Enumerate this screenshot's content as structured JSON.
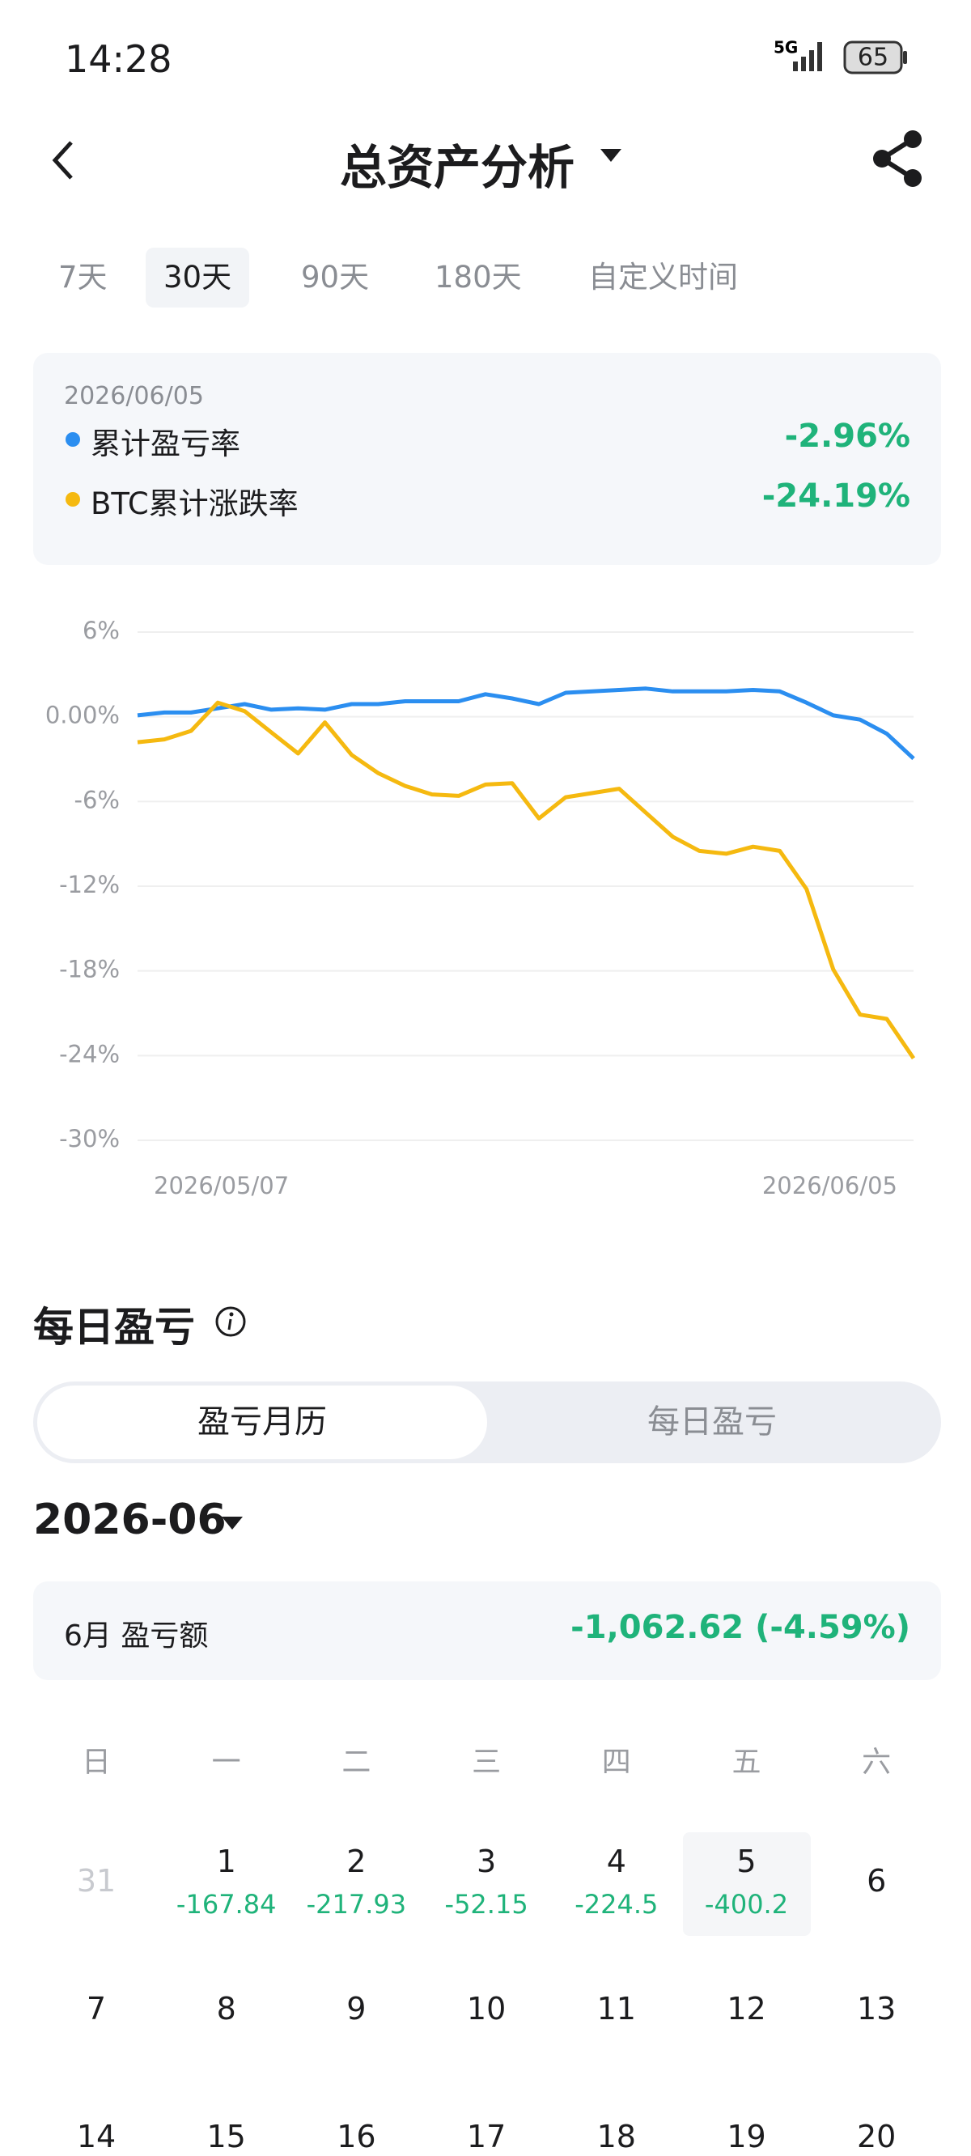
{
  "status_bar": {
    "time": "14:28",
    "network": "5G",
    "battery": "65"
  },
  "header": {
    "title": "总资产分析"
  },
  "tabs": {
    "items": [
      "7天",
      "30天",
      "90天",
      "180天",
      "自定义时间"
    ],
    "active": 1
  },
  "readout": {
    "values": [
      "-2.96%",
      "-24.19%"
    ]
  },
  "chart_data": {
    "type": "line",
    "x": [
      "2026/05/07",
      "2026/05/08",
      "2026/05/09",
      "2026/05/10",
      "2026/05/11",
      "2026/05/12",
      "2026/05/13",
      "2026/05/14",
      "2026/05/15",
      "2026/05/16",
      "2026/05/17",
      "2026/05/18",
      "2026/05/19",
      "2026/05/20",
      "2026/05/21",
      "2026/05/22",
      "2026/05/23",
      "2026/05/24",
      "2026/05/25",
      "2026/05/26",
      "2026/05/27",
      "2026/05/28",
      "2026/05/29",
      "2026/05/30",
      "2026/05/31",
      "2026/06/01",
      "2026/06/02",
      "2026/06/03",
      "2026/06/04",
      "2026/06/05"
    ],
    "series": [
      {
        "name": "累计盈亏率",
        "color": "#2b8ef0",
        "values": [
          0.1,
          0.3,
          0.3,
          0.6,
          0.9,
          0.5,
          0.6,
          0.5,
          0.9,
          0.9,
          1.1,
          1.1,
          1.1,
          1.6,
          1.3,
          0.9,
          1.7,
          1.8,
          1.9,
          2.0,
          1.8,
          1.8,
          1.8,
          1.9,
          1.8,
          1.0,
          0.1,
          -0.2,
          -1.2,
          -2.96
        ]
      },
      {
        "name": "BTC累计涨跌率",
        "color": "#f5b910",
        "values": [
          -1.8,
          -1.6,
          -1.0,
          1.0,
          0.4,
          -1.1,
          -2.6,
          -0.4,
          -2.7,
          -4.0,
          -4.9,
          -5.5,
          -5.6,
          -4.8,
          -4.7,
          -7.2,
          -5.7,
          -5.4,
          -5.1,
          -6.8,
          -8.5,
          -9.5,
          -9.7,
          -9.2,
          -9.5,
          -12.2,
          -17.9,
          -21.1,
          -21.4,
          -24.19
        ]
      }
    ],
    "ylim": [
      -30,
      6
    ],
    "yticks": [
      {
        "value": 6,
        "label": "6%"
      },
      {
        "value": 0,
        "label": "0.00%"
      },
      {
        "value": -6,
        "label": "-6%"
      },
      {
        "value": -12,
        "label": "-12%"
      },
      {
        "value": -18,
        "label": "-18%"
      },
      {
        "value": -24,
        "label": "-24%"
      },
      {
        "value": -30,
        "label": "-30%"
      }
    ],
    "xticks": [
      "2026/05/07",
      "2026/06/05"
    ],
    "grid": true
  },
  "daily": {
    "title": "每日盈亏",
    "toggle": [
      "盈亏月历",
      "每日盈亏"
    ],
    "active": 0,
    "month": "2026-06",
    "summary_label": "6月 盈亏额",
    "summary_value": "-1,062.62 (-4.59%)",
    "weekdays": [
      "日",
      "一",
      "二",
      "三",
      "四",
      "五",
      "六"
    ],
    "weeks": [
      [
        {
          "day": "31",
          "muted": true
        },
        {
          "day": "1",
          "pnl": "-167.84"
        },
        {
          "day": "2",
          "pnl": "-217.93"
        },
        {
          "day": "3",
          "pnl": "-52.15"
        },
        {
          "day": "4",
          "pnl": "-224.5"
        },
        {
          "day": "5",
          "pnl": "-400.2",
          "selected": true
        },
        {
          "day": "6"
        }
      ],
      [
        {
          "day": "7"
        },
        {
          "day": "8"
        },
        {
          "day": "9"
        },
        {
          "day": "10"
        },
        {
          "day": "11"
        },
        {
          "day": "12"
        },
        {
          "day": "13"
        }
      ],
      [
        {
          "day": "14"
        },
        {
          "day": "15"
        },
        {
          "day": "16"
        },
        {
          "day": "17"
        },
        {
          "day": "18"
        },
        {
          "day": "19"
        },
        {
          "day": "20"
        }
      ]
    ]
  }
}
